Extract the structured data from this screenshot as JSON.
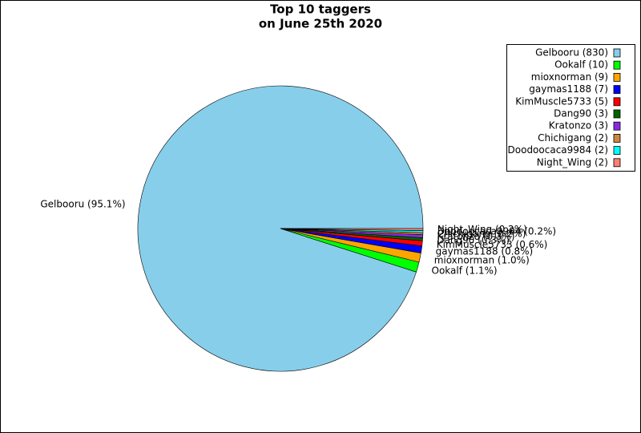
{
  "chart_data": {
    "type": "pie",
    "title": [
      "Top 10 taggers",
      "on June 25th 2020"
    ],
    "categories": [
      "Gelbooru",
      "Ookalf",
      "mioxnorman",
      "gaymas1188",
      "KimMuscle5733",
      "Dang90",
      "Kratonzo",
      "Chichigang",
      "Doodoocaca9984",
      "Night_Wing"
    ],
    "values": [
      830,
      10,
      9,
      7,
      5,
      3,
      3,
      2,
      2,
      2
    ],
    "labels": [
      "Gelbooru (95.1%)",
      "Ookalf (1.1%)",
      "mioxnorman (1.0%)",
      "gaymas1188 (0.8%)",
      "KimMuscle5733 (0.6%)",
      "Dang90 (0.3%)",
      "Kratonzo (0.3%)",
      "Chichigang (0.2%)",
      "Doodoocaca9984 (0.2%)",
      "Night_Wing (0.2%)"
    ],
    "legend": [
      "Gelbooru (830)",
      "Ookalf (10)",
      "mioxnorman (9)",
      "gaymas1188 (7)",
      "KimMuscle5733 (5)",
      "Dang90 (3)",
      "Kratonzo (3)",
      "Chichigang (2)",
      "Doodoocaca9984 (2)",
      "Night_Wing (2)"
    ],
    "colors": [
      "#87ceeb",
      "#00ff00",
      "#ffa500",
      "#0000ff",
      "#ff0000",
      "#006400",
      "#8a2be2",
      "#cd853f",
      "#00ffff",
      "#fa8072"
    ],
    "legend_position": "upper right"
  }
}
